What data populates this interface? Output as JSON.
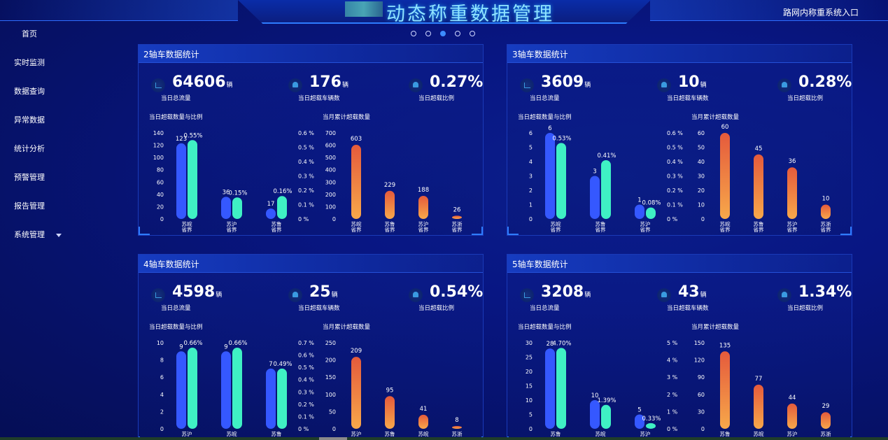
{
  "header": {
    "title": "动态称重数据管理",
    "entry_link": "路网内称重系统入口"
  },
  "sidebar": {
    "items": [
      {
        "label": "首页"
      },
      {
        "label": "实时监测"
      },
      {
        "label": "数据查询"
      },
      {
        "label": "异常数据"
      },
      {
        "label": "统计分析"
      },
      {
        "label": "预警管理"
      },
      {
        "label": "报告管理"
      },
      {
        "label": "系统管理",
        "icon": "chevron-down-icon"
      }
    ]
  },
  "carousel": {
    "dots": 5,
    "active_index": 2
  },
  "colors": {
    "bar_count": "#3558ff",
    "bar_ratio": "#3ff0c4",
    "bar_month_top": "#e55a3c",
    "bar_month_bottom": "#f7a84a",
    "accent": "#2f7cff"
  },
  "panels": [
    {
      "title": "2轴车数据统计",
      "stats": [
        {
          "value": "64606",
          "unit": "辆",
          "caption": "当日总流量",
          "icon": "chart-icon"
        },
        {
          "value": "176",
          "unit": "辆",
          "caption": "当日超载车辆数",
          "icon": "bell-icon"
        },
        {
          "value": "0.27%",
          "unit": "",
          "caption": "当日超载比例",
          "icon": "bell-icon"
        }
      ],
      "chart_left_title": "当日超载数量与比例",
      "chart_right_title": "当月累计超载数量"
    },
    {
      "title": "3轴车数据统计",
      "stats": [
        {
          "value": "3609",
          "unit": "辆",
          "caption": "当日总流量",
          "icon": "chart-icon"
        },
        {
          "value": "10",
          "unit": "辆",
          "caption": "当日超载车辆数",
          "icon": "bell-icon"
        },
        {
          "value": "0.28%",
          "unit": "",
          "caption": "当日超载比例",
          "icon": "bell-icon"
        }
      ],
      "chart_left_title": "当日超载数量与比例",
      "chart_right_title": "当月累计超载数量"
    },
    {
      "title": "4轴车数据统计",
      "stats": [
        {
          "value": "4598",
          "unit": "辆",
          "caption": "当日总流量",
          "icon": "chart-icon"
        },
        {
          "value": "25",
          "unit": "辆",
          "caption": "当日超载车辆数",
          "icon": "bell-icon"
        },
        {
          "value": "0.54%",
          "unit": "",
          "caption": "当日超载比例",
          "icon": "bell-icon"
        }
      ],
      "chart_left_title": "当日超载数量与比例",
      "chart_right_title": "当月累计超载数量"
    },
    {
      "title": "5轴车数据统计",
      "stats": [
        {
          "value": "3208",
          "unit": "辆",
          "caption": "当日总流量",
          "icon": "chart-icon"
        },
        {
          "value": "43",
          "unit": "辆",
          "caption": "当日超载车辆数",
          "icon": "bell-icon"
        },
        {
          "value": "1.34%",
          "unit": "",
          "caption": "当日超载比例",
          "icon": "bell-icon"
        }
      ],
      "chart_left_title": "当日超载数量与比例",
      "chart_right_title": "当月累计超载数量"
    }
  ],
  "chart_data": [
    {
      "type": "bar",
      "panel": 0,
      "chart": "daily",
      "categories": [
        "苏皖\n省界",
        "苏沪\n省界",
        "苏鲁\n省界"
      ],
      "y_ticks": [
        0,
        20,
        40,
        60,
        80,
        100,
        120,
        140
      ],
      "ylim": [
        0,
        140
      ],
      "y2_ticks": [
        "0 %",
        "0.1 %",
        "0.2 %",
        "0.3 %",
        "0.4 %",
        "0.5 %",
        "0.6 %"
      ],
      "y2lim": [
        0,
        0.6
      ],
      "series": [
        {
          "values": [
            123,
            36,
            17
          ],
          "labels": [
            "123",
            "36",
            "17"
          ]
        },
        {
          "values": [
            0.55,
            0.15,
            0.16
          ],
          "labels": [
            "0.55%",
            "0.15%",
            "0.16%"
          ]
        }
      ]
    },
    {
      "type": "bar",
      "panel": 0,
      "chart": "monthly",
      "categories": [
        "苏皖\n省界",
        "苏鲁\n省界",
        "苏沪\n省界",
        "苏浙\n省界"
      ],
      "y_ticks": [
        0,
        100,
        200,
        300,
        400,
        500,
        600,
        700
      ],
      "ylim": [
        0,
        700
      ],
      "values": [
        603,
        229,
        188,
        26
      ]
    },
    {
      "type": "bar",
      "panel": 1,
      "chart": "daily",
      "categories": [
        "苏皖\n省界",
        "苏鲁\n省界",
        "苏沪\n省界"
      ],
      "y_ticks": [
        0,
        1,
        2,
        3,
        4,
        5,
        6
      ],
      "ylim": [
        0,
        6
      ],
      "y2_ticks": [
        "0 %",
        "0.1 %",
        "0.2 %",
        "0.3 %",
        "0.4 %",
        "0.5 %",
        "0.6 %"
      ],
      "y2lim": [
        0,
        0.6
      ],
      "series": [
        {
          "values": [
            6,
            3,
            1
          ],
          "labels": [
            "6",
            "3",
            "1"
          ]
        },
        {
          "values": [
            0.53,
            0.41,
            0.08
          ],
          "labels": [
            "0.53%",
            "0.41%",
            "0.08%"
          ]
        }
      ]
    },
    {
      "type": "bar",
      "panel": 1,
      "chart": "monthly",
      "categories": [
        "苏皖\n省界",
        "苏鲁\n省界",
        "苏沪\n省界",
        "苏浙\n省界"
      ],
      "y_ticks": [
        0,
        10,
        20,
        30,
        40,
        50,
        60
      ],
      "ylim": [
        0,
        60
      ],
      "values": [
        60,
        45,
        36,
        10
      ]
    },
    {
      "type": "bar",
      "panel": 2,
      "chart": "daily",
      "categories": [
        "苏沪",
        "苏皖",
        "苏鲁"
      ],
      "y_ticks": [
        0,
        2,
        4,
        6,
        8,
        10
      ],
      "ylim": [
        0,
        10
      ],
      "y2_ticks": [
        "0 %",
        "0.1 %",
        "0.2 %",
        "0.3 %",
        "0.4 %",
        "0.5 %",
        "0.6 %",
        "0.7 %"
      ],
      "y2lim": [
        0,
        0.7
      ],
      "series": [
        {
          "values": [
            9,
            9,
            7
          ],
          "labels": [
            "9",
            "9",
            "7"
          ]
        },
        {
          "values": [
            0.66,
            0.66,
            0.49
          ],
          "labels": [
            "0.66%",
            "0.66%",
            "0.49%"
          ]
        }
      ]
    },
    {
      "type": "bar",
      "panel": 2,
      "chart": "monthly",
      "categories": [
        "苏沪",
        "苏鲁",
        "苏皖",
        "苏浙"
      ],
      "y_ticks": [
        0,
        50,
        100,
        150,
        200,
        250
      ],
      "ylim": [
        0,
        250
      ],
      "values": [
        209,
        95,
        41,
        8
      ]
    },
    {
      "type": "bar",
      "panel": 3,
      "chart": "daily",
      "categories": [
        "苏鲁",
        "苏皖",
        "苏沪"
      ],
      "y_ticks": [
        0,
        5,
        10,
        15,
        20,
        25,
        30
      ],
      "ylim": [
        0,
        30
      ],
      "y2_ticks": [
        "0 %",
        "1 %",
        "2 %",
        "3 %",
        "4 %",
        "5 %"
      ],
      "y2lim": [
        0,
        5
      ],
      "series": [
        {
          "values": [
            28,
            10,
            5
          ],
          "labels": [
            "28",
            "10",
            "5"
          ]
        },
        {
          "values": [
            4.7,
            1.39,
            0.33
          ],
          "labels": [
            "4.70%",
            "1.39%",
            "0.33%"
          ]
        }
      ]
    },
    {
      "type": "bar",
      "panel": 3,
      "chart": "monthly",
      "categories": [
        "苏鲁",
        "苏皖",
        "苏沪",
        "苏浙"
      ],
      "y_ticks": [
        0,
        30,
        60,
        90,
        120,
        150
      ],
      "ylim": [
        0,
        150
      ],
      "values": [
        135,
        77,
        44,
        29
      ]
    }
  ]
}
